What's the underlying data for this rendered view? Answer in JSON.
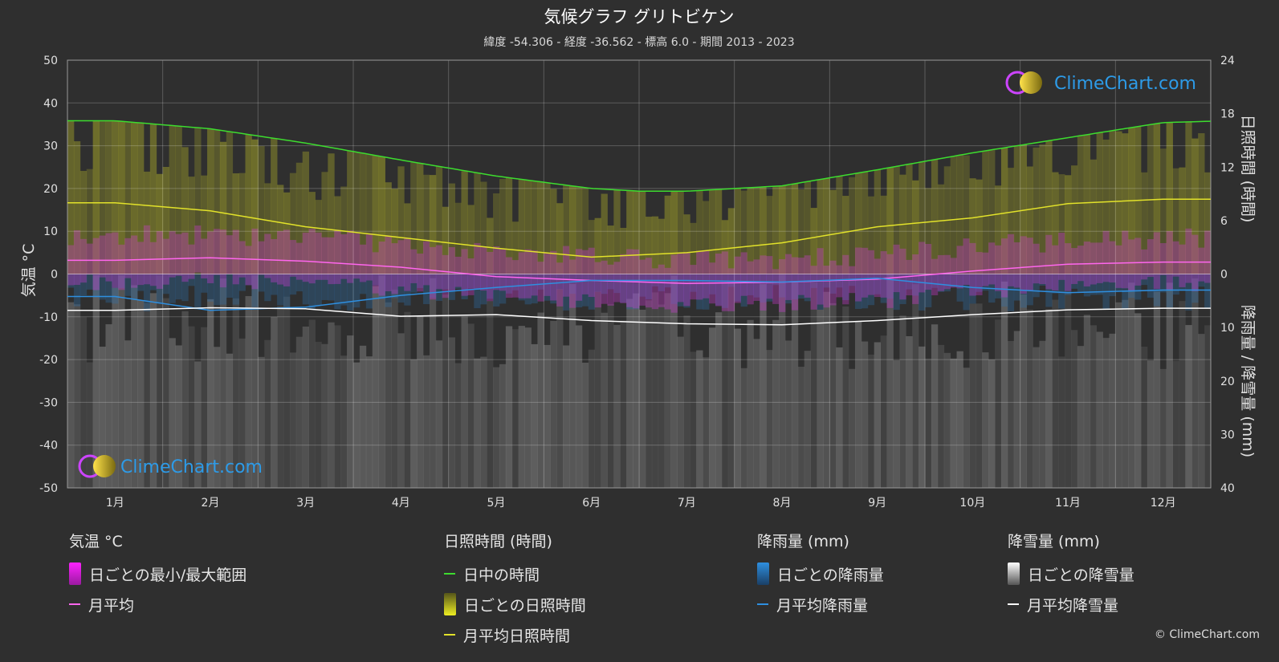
{
  "chart_data": {
    "type": "line",
    "title": "気候グラフ グリトビケン",
    "subtitle": "緯度 -54.306 - 経度 -36.562 - 標高 6.0 - 期間 2013 - 2023",
    "ylabel_left": "気温 °C",
    "ylabel_right_top": "日照時間 (時間)",
    "ylabel_right_bottom": "降雨量 / 降雪量 (mm)",
    "ylim_left": [
      -50,
      50
    ],
    "yticks_left": [
      "50",
      "40",
      "30",
      "20",
      "10",
      "0",
      "-10",
      "-20",
      "-30",
      "-40",
      "-50"
    ],
    "yticks_right_sun": [
      "24",
      "18",
      "12",
      "6",
      "0"
    ],
    "yticks_right_precip": [
      "10",
      "20",
      "30",
      "40"
    ],
    "categories": [
      "1月",
      "2月",
      "3月",
      "4月",
      "5月",
      "6月",
      "7月",
      "8月",
      "9月",
      "10月",
      "11月",
      "12月"
    ],
    "grid": true,
    "series": [
      {
        "name": "日中の時間",
        "axis": "sunshine_hours",
        "color": "#3ddc2f",
        "x": [
          0,
          1,
          2,
          3,
          4,
          5,
          5.5,
          6,
          7,
          8,
          9,
          10,
          11,
          11.7
        ],
        "values": [
          17.2,
          16.3,
          14.7,
          12.8,
          11.0,
          9.6,
          9.3,
          9.3,
          9.9,
          11.7,
          13.6,
          15.3,
          17.0,
          17.2
        ]
      },
      {
        "name": "月平均日照時間",
        "axis": "sunshine_hours",
        "color": "#e2e22a",
        "values": [
          8.0,
          7.1,
          5.3,
          4.1,
          2.9,
          1.9,
          2.4,
          3.5,
          5.3,
          6.3,
          7.9,
          8.4
        ]
      },
      {
        "name": "月平均",
        "axis": "temperature_c",
        "color": "#ff66ee",
        "values": [
          3.2,
          3.8,
          3.0,
          1.6,
          -0.6,
          -1.5,
          -2.2,
          -1.9,
          -1.2,
          0.7,
          2.3,
          2.8
        ]
      },
      {
        "name": "月平均降雨量",
        "axis": "precip_mm",
        "color": "#2e8fe0",
        "values": [
          4.2,
          6.8,
          6.2,
          4.0,
          2.5,
          1.2,
          1.2,
          1.5,
          0.8,
          2.5,
          3.5,
          3.0
        ]
      },
      {
        "name": "月平均降雪量",
        "axis": "precip_mm",
        "color": "#ffffff",
        "values": [
          6.8,
          6.3,
          6.5,
          7.9,
          7.6,
          8.7,
          9.3,
          9.5,
          8.7,
          7.6,
          6.7,
          6.4
        ]
      }
    ]
  },
  "legend": {
    "temp": {
      "heading": "気温 °C",
      "range": "日ごとの最小/最大範囲",
      "avg": "月平均"
    },
    "sun": {
      "heading": "日照時間 (時間)",
      "daylight": "日中の時間",
      "daily": "日ごとの日照時間",
      "avg": "月平均日照時間"
    },
    "rain": {
      "heading": "降雨量 (mm)",
      "daily": "日ごとの降雨量",
      "avg": "月平均降雨量"
    },
    "snow": {
      "heading": "降雪量 (mm)",
      "daily": "日ごとの降雪量",
      "avg": "月平均降雪量"
    }
  },
  "logo_text": "ClimeChart.com",
  "copyright": "© ClimeChart.com",
  "colors": {
    "background": "#2f2f2f",
    "daylight": "#3ddc2f",
    "sunshine": "#e2e22a",
    "temperature": "#ff66ee",
    "rain": "#2e8fe0",
    "snow": "#ffffff",
    "logo_blue": "#2d9be8"
  }
}
